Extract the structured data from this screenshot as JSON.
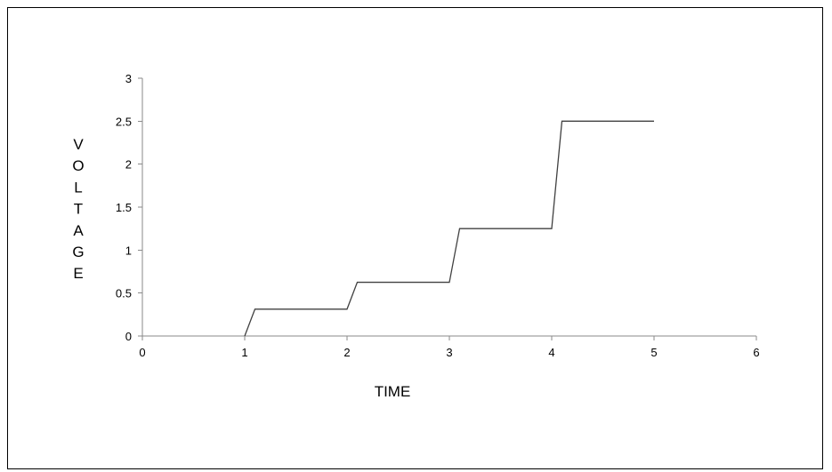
{
  "chart_data": {
    "type": "line",
    "title": "",
    "xlabel": "TIME",
    "ylabel": "VOLTAGE",
    "xlim": [
      0,
      6
    ],
    "ylim": [
      0,
      3
    ],
    "x_ticks": [
      0,
      1,
      2,
      3,
      4,
      5,
      6
    ],
    "y_ticks": [
      0,
      0.5,
      1,
      1.5,
      2,
      2.5,
      3
    ],
    "x_tick_labels": [
      "0",
      "1",
      "2",
      "3",
      "4",
      "5",
      "6"
    ],
    "y_tick_labels": [
      "0",
      "0.5",
      "1",
      "1.5",
      "2",
      "2.5",
      "3"
    ],
    "grid": false,
    "legend": "none",
    "series": [
      {
        "x": [
          1,
          1.1,
          2,
          2.1,
          3,
          3.1,
          4,
          4.1,
          5
        ],
        "y": [
          0,
          0.3125,
          0.3125,
          0.625,
          0.625,
          1.25,
          1.25,
          2.5,
          2.5
        ],
        "color": "#404040"
      }
    ],
    "axis_color": "#8a8a8a",
    "frame_color": "#000000"
  }
}
